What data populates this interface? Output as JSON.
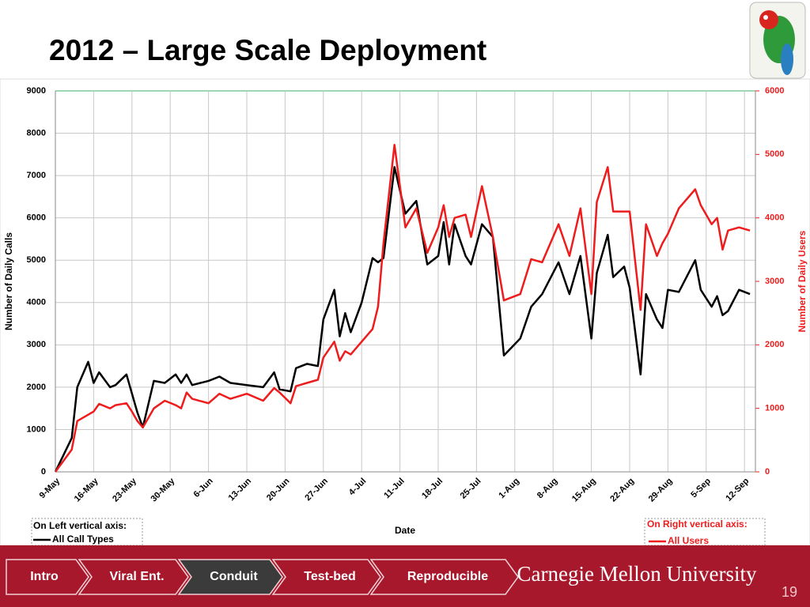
{
  "header": {
    "title": "2012 – Large Scale Deployment"
  },
  "chart_data": {
    "type": "line",
    "x_label": "Date",
    "y_label": "Number of Daily Calls",
    "y2_label": "Number of Daily Users",
    "annotations": [
      "On Left vertical axis:",
      "On Right vertical axis:"
    ],
    "x": [
      "9-May",
      "12-May",
      "13-May",
      "15-May",
      "16-May",
      "17-May",
      "19-May",
      "20-May",
      "22-May",
      "23-May",
      "24-May",
      "25-May",
      "27-May",
      "29-May",
      "31-May",
      "1-Jun",
      "2-Jun",
      "3-Jun",
      "6-Jun",
      "8-Jun",
      "10-Jun",
      "13-Jun",
      "16-Jun",
      "18-Jun",
      "19-Jun",
      "21-Jun",
      "22-Jun",
      "24-Jun",
      "26-Jun",
      "27-Jun",
      "29-Jun",
      "30-Jun",
      "1-Jul",
      "2-Jul",
      "4-Jul",
      "6-Jul",
      "7-Jul",
      "8-Jul",
      "10-Jul",
      "12-Jul",
      "14-Jul",
      "16-Jul",
      "18-Jul",
      "19-Jul",
      "20-Jul",
      "21-Jul",
      "23-Jul",
      "24-Jul",
      "26-Jul",
      "28-Jul",
      "30-Jul",
      "2-Aug",
      "4-Aug",
      "6-Aug",
      "9-Aug",
      "11-Aug",
      "13-Aug",
      "15-Aug",
      "16-Aug",
      "18-Aug",
      "19-Aug",
      "21-Aug",
      "22-Aug",
      "24-Aug",
      "25-Aug",
      "27-Aug",
      "28-Aug",
      "29-Aug",
      "31-Aug",
      "3-Sep",
      "4-Sep",
      "6-Sep",
      "7-Sep",
      "8-Sep",
      "9-Sep",
      "11-Sep",
      "13-Sep"
    ],
    "series": [
      {
        "name": "All Call Types",
        "color": "#000000",
        "axis": "y",
        "values": [
          0,
          800,
          2000,
          2600,
          2100,
          2350,
          2000,
          2050,
          2300,
          1850,
          1400,
          1050,
          2150,
          2100,
          2300,
          2100,
          2300,
          2050,
          2150,
          2250,
          2100,
          2050,
          2000,
          2350,
          1950,
          1900,
          2450,
          2550,
          2500,
          3600,
          4300,
          3200,
          3750,
          3300,
          4000,
          5050,
          4950,
          5050,
          7200,
          6100,
          6400,
          4900,
          5100,
          5900,
          4900,
          5850,
          5100,
          4900,
          5850,
          5550,
          2750,
          3150,
          3900,
          4200,
          4950,
          4200,
          5100,
          3150,
          4700,
          5600,
          4600,
          4850,
          4350,
          2300,
          4200,
          3600,
          3400,
          4300,
          4250,
          5000,
          4300,
          3900,
          4150,
          3700,
          3800,
          4300,
          4200
        ]
      },
      {
        "name": "All Users",
        "color": "#ee1c1c",
        "axis": "y2",
        "values": [
          0,
          350,
          800,
          900,
          950,
          1070,
          1000,
          1050,
          1080,
          950,
          800,
          700,
          1000,
          1120,
          1050,
          1000,
          1250,
          1150,
          1080,
          1230,
          1150,
          1230,
          1120,
          1320,
          1250,
          1080,
          1350,
          1400,
          1450,
          1800,
          2050,
          1750,
          1900,
          1850,
          2050,
          2250,
          2600,
          3600,
          5150,
          3850,
          4150,
          3450,
          3850,
          4200,
          3700,
          4000,
          4050,
          3700,
          4500,
          3700,
          2700,
          2800,
          3350,
          3300,
          3900,
          3400,
          4150,
          2800,
          4250,
          4800,
          4100,
          4100,
          4100,
          2550,
          3900,
          3400,
          3600,
          3750,
          4150,
          4450,
          4200,
          3900,
          4000,
          3500,
          3800,
          3850,
          3800
        ]
      }
    ],
    "xlim": [
      "9-May",
      "14-Sep"
    ],
    "xticks": [
      "9-May",
      "16-May",
      "23-May",
      "30-May",
      "6-Jun",
      "13-Jun",
      "20-Jun",
      "27-Jun",
      "4-Jul",
      "11-Jul",
      "18-Jul",
      "25-Jul",
      "1-Aug",
      "8-Aug",
      "15-Aug",
      "22-Aug",
      "29-Aug",
      "5-Sep",
      "12-Sep"
    ],
    "ylim": [
      0,
      9000
    ],
    "yticks": [
      0,
      1000,
      2000,
      3000,
      4000,
      5000,
      6000,
      7000,
      8000,
      9000
    ],
    "y2lim": [
      0,
      6000
    ],
    "y2ticks": [
      0,
      1000,
      2000,
      3000,
      4000,
      5000,
      6000
    ],
    "grid": true
  },
  "nav": {
    "items": [
      "Intro",
      "Viral Ent.",
      "Conduit",
      "Test-bed",
      "Reproducible"
    ],
    "active": 2
  },
  "footer": {
    "brand": "Carnegie Mellon University",
    "page": 19
  }
}
